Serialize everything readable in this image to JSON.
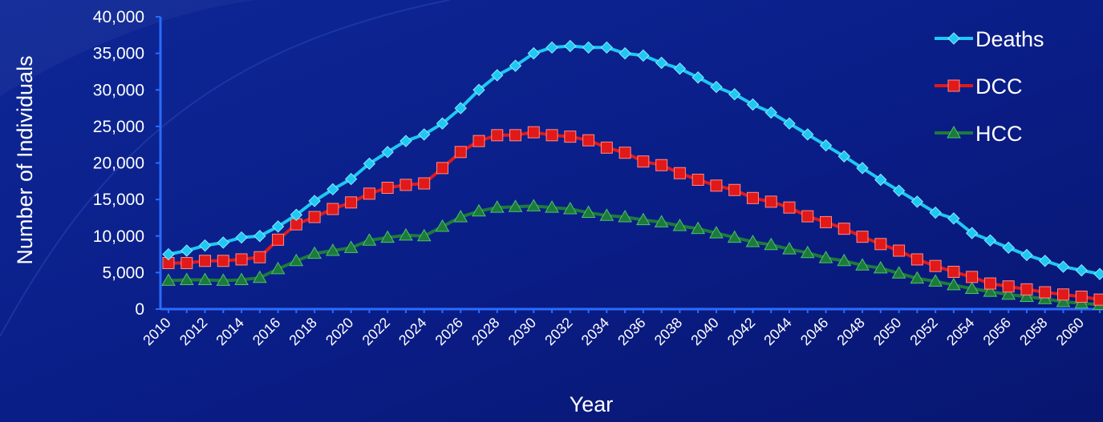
{
  "chart_data": {
    "type": "line",
    "xlabel": "Year",
    "ylabel": "Number of Individuals",
    "ylim": [
      0,
      40000
    ],
    "y_ticks": [
      "40,000",
      "35,000",
      "30,000",
      "25,000",
      "20,000",
      "15,000",
      "10,000",
      "5,000",
      "0"
    ],
    "y_tick_values": [
      40000,
      35000,
      30000,
      25000,
      20000,
      15000,
      10000,
      5000,
      0
    ],
    "x_tick_labels": [
      "2010",
      "2012",
      "2014",
      "2016",
      "2018",
      "2020",
      "2022",
      "2024",
      "2026",
      "2028",
      "2030",
      "2032",
      "2034",
      "2036",
      "2038",
      "2040",
      "2042",
      "2044",
      "2046",
      "2048",
      "2050",
      "2052",
      "2054",
      "2056",
      "2058",
      "2060"
    ],
    "x": [
      2010,
      2011,
      2012,
      2013,
      2014,
      2015,
      2016,
      2017,
      2018,
      2019,
      2020,
      2021,
      2022,
      2023,
      2024,
      2025,
      2026,
      2027,
      2028,
      2029,
      2030,
      2031,
      2032,
      2033,
      2034,
      2035,
      2036,
      2037,
      2038,
      2039,
      2040,
      2041,
      2042,
      2043,
      2044,
      2045,
      2046,
      2047,
      2048,
      2049,
      2050,
      2051,
      2052,
      2053,
      2054,
      2055,
      2056,
      2057,
      2058,
      2059,
      2060,
      2061
    ],
    "legend_position": "top-right",
    "grid": false,
    "series": [
      {
        "name": "Deaths",
        "color": "#1ec8f5",
        "marker": "diamond",
        "values": [
          7500,
          8000,
          8700,
          9100,
          9800,
          10000,
          11300,
          12900,
          14800,
          16400,
          17800,
          19900,
          21500,
          23000,
          23900,
          25400,
          27500,
          30000,
          32000,
          33300,
          35000,
          35800,
          36000,
          35800,
          35800,
          35000,
          34700,
          33700,
          32900,
          31700,
          30400,
          29400,
          28000,
          26900,
          25400,
          23900,
          22400,
          20900,
          19300,
          17700,
          16200,
          14700,
          13200,
          12400,
          10400,
          9400,
          8400,
          7400,
          6600,
          5800,
          5300,
          4800
        ]
      },
      {
        "name": "DCC",
        "color": "#e11919",
        "marker": "square",
        "values": [
          6300,
          6300,
          6600,
          6600,
          6800,
          7100,
          9500,
          11600,
          12600,
          13700,
          14600,
          15800,
          16600,
          17000,
          17200,
          19300,
          21500,
          23000,
          23800,
          23800,
          24200,
          23800,
          23600,
          23100,
          22100,
          21400,
          20200,
          19700,
          18600,
          17700,
          16900,
          16300,
          15200,
          14700,
          13900,
          12700,
          11900,
          11000,
          9900,
          8900,
          8000,
          6800,
          5900,
          5100,
          4400,
          3500,
          3100,
          2700,
          2300,
          2000,
          1700,
          1300
        ]
      },
      {
        "name": "HCC",
        "color": "#1e7a3a",
        "marker": "triangle",
        "values": [
          3900,
          4000,
          4000,
          3900,
          4000,
          4300,
          5500,
          6600,
          7600,
          8000,
          8400,
          9400,
          9800,
          10100,
          10000,
          11300,
          12600,
          13400,
          13900,
          14000,
          14100,
          13900,
          13700,
          13200,
          12800,
          12600,
          12200,
          11900,
          11400,
          11000,
          10400,
          9800,
          9200,
          8800,
          8200,
          7700,
          7000,
          6600,
          6000,
          5600,
          4900,
          4200,
          3800,
          3300,
          2800,
          2400,
          2000,
          1700,
          1400,
          1000,
          800,
          600
        ]
      }
    ]
  }
}
